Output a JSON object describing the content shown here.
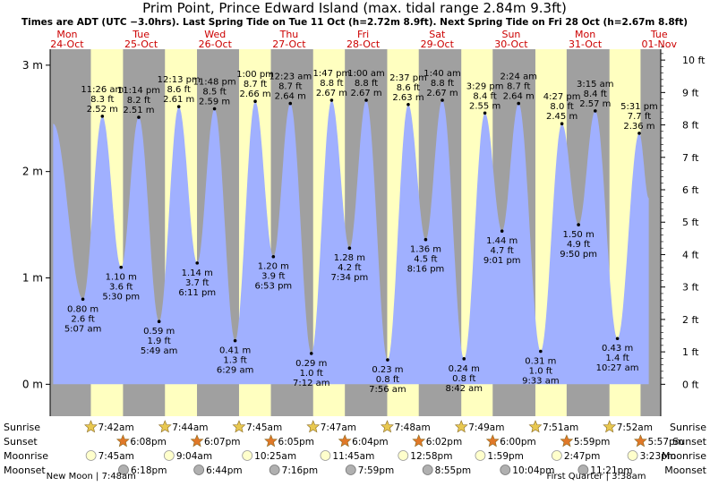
{
  "title": "Prim Point, Prince Edward Island (max. tidal range 2.84m 9.3ft)",
  "subtitle": "Times are ADT (UTC −3.0hrs). Last Spring Tide on Tue 11 Oct (h=2.72m 8.9ft). Next Spring Tide on Fri 28 Oct (h=2.67m 8.8ft)",
  "colors": {
    "night": "#a0a0a0",
    "day": "#ffffc0",
    "water": "#a0b0ff",
    "header_red": "#cc0000",
    "sun_star": "#e8c850",
    "sunset_star": "#e07828",
    "moonrise": "#ffffcc",
    "moonset": "#b0b0b0"
  },
  "days": [
    {
      "weekday": "Mon",
      "date": "24-Oct"
    },
    {
      "weekday": "Tue",
      "date": "25-Oct"
    },
    {
      "weekday": "Wed",
      "date": "26-Oct"
    },
    {
      "weekday": "Thu",
      "date": "27-Oct"
    },
    {
      "weekday": "Fri",
      "date": "28-Oct"
    },
    {
      "weekday": "Sat",
      "date": "29-Oct"
    },
    {
      "weekday": "Sun",
      "date": "30-Oct"
    },
    {
      "weekday": "Mon",
      "date": "31-Oct"
    },
    {
      "weekday": "Tue",
      "date": "01-Nov"
    }
  ],
  "chart_data": {
    "type": "area",
    "title": "Prim Point, Prince Edward Island (max. tidal range 2.84m 9.3ft)",
    "x_unit": "hours since 24-Oct 00:00",
    "xlim": [
      18.5,
      216.5
    ],
    "left_axis": {
      "unit": "m",
      "lim": [
        -0.3,
        3.15
      ],
      "ticks": [
        0,
        1,
        2,
        3
      ],
      "tick_labels": [
        "0 m",
        "1 m",
        "2 m",
        "3 m"
      ]
    },
    "right_axis": {
      "unit": "ft",
      "ticks": [
        0,
        1,
        2,
        3,
        4,
        5,
        6,
        7,
        8,
        9,
        10
      ],
      "tick_labels": [
        "0 ft",
        "1 ft",
        "2 ft",
        "3 ft",
        "4 ft",
        "5 ft",
        "6 ft",
        "7 ft",
        "8 ft",
        "9 ft",
        "10 ft"
      ]
    },
    "tides": [
      {
        "t": 29.12,
        "h": 0.8,
        "ft": "2.6 ft",
        "time": "5:07 am",
        "type": "low"
      },
      {
        "t": 35.43,
        "h": 2.52,
        "ft": "8.3 ft",
        "time": "11:26 am",
        "type": "high"
      },
      {
        "t": 41.5,
        "h": 1.1,
        "ft": "3.6 ft",
        "time": "5:30 pm",
        "type": "low"
      },
      {
        "t": 47.23,
        "h": 2.51,
        "ft": "8.2 ft",
        "time": "11:14 pm",
        "type": "high"
      },
      {
        "t": 53.82,
        "h": 0.59,
        "ft": "1.9 ft",
        "time": "5:49 am",
        "type": "low"
      },
      {
        "t": 60.22,
        "h": 2.61,
        "ft": "8.6 ft",
        "time": "12:13 pm",
        "type": "high"
      },
      {
        "t": 66.18,
        "h": 1.14,
        "ft": "3.7 ft",
        "time": "6:11 pm",
        "type": "low"
      },
      {
        "t": 71.8,
        "h": 2.59,
        "ft": "8.5 ft",
        "time": "11:48 pm",
        "type": "high"
      },
      {
        "t": 78.48,
        "h": 0.41,
        "ft": "1.3 ft",
        "time": "6:29 am",
        "type": "low"
      },
      {
        "t": 85.0,
        "h": 2.66,
        "ft": "8.7 ft",
        "time": "1:00 pm",
        "type": "high"
      },
      {
        "t": 90.88,
        "h": 1.2,
        "ft": "3.9 ft",
        "time": "6:53 pm",
        "type": "low"
      },
      {
        "t": 96.38,
        "h": 2.64,
        "ft": "8.7 ft",
        "time": "12:23 am",
        "type": "high"
      },
      {
        "t": 103.2,
        "h": 0.29,
        "ft": "1.0 ft",
        "time": "7:12 am",
        "type": "low"
      },
      {
        "t": 109.78,
        "h": 2.67,
        "ft": "8.8 ft",
        "time": "1:47 pm",
        "type": "high"
      },
      {
        "t": 115.57,
        "h": 1.28,
        "ft": "4.2 ft",
        "time": "7:34 pm",
        "type": "low"
      },
      {
        "t": 121.0,
        "h": 2.67,
        "ft": "8.8 ft",
        "time": "1:00 am",
        "type": "high"
      },
      {
        "t": 127.93,
        "h": 0.23,
        "ft": "0.8 ft",
        "time": "7:56 am",
        "type": "low"
      },
      {
        "t": 134.62,
        "h": 2.63,
        "ft": "8.6 ft",
        "time": "2:37 pm",
        "type": "high"
      },
      {
        "t": 140.27,
        "h": 1.36,
        "ft": "4.5 ft",
        "time": "8:16 pm",
        "type": "low"
      },
      {
        "t": 145.67,
        "h": 2.67,
        "ft": "8.8 ft",
        "time": "1:40 am",
        "type": "high"
      },
      {
        "t": 152.7,
        "h": 0.24,
        "ft": "0.8 ft",
        "time": "8:42 am",
        "type": "low"
      },
      {
        "t": 159.48,
        "h": 2.55,
        "ft": "8.4 ft",
        "time": "3:29 pm",
        "type": "high"
      },
      {
        "t": 165.02,
        "h": 1.44,
        "ft": "4.7 ft",
        "time": "9:01 pm",
        "type": "low"
      },
      {
        "t": 170.4,
        "h": 2.64,
        "ft": "8.7 ft",
        "time": "2:24 am",
        "type": "high"
      },
      {
        "t": 177.55,
        "h": 0.31,
        "ft": "1.0 ft",
        "time": "9:33 am",
        "type": "low"
      },
      {
        "t": 184.45,
        "h": 2.45,
        "ft": "8.0 ft",
        "time": "4:27 pm",
        "type": "high"
      },
      {
        "t": 189.83,
        "h": 1.5,
        "ft": "4.9 ft",
        "time": "9:50 pm",
        "type": "low"
      },
      {
        "t": 195.25,
        "h": 2.57,
        "ft": "8.4 ft",
        "time": "3:15 am",
        "type": "high"
      },
      {
        "t": 202.45,
        "h": 0.43,
        "ft": "1.4 ft",
        "time": "10:27 am",
        "type": "low"
      },
      {
        "t": 209.52,
        "h": 2.36,
        "ft": "7.7 ft",
        "time": "5:31 pm",
        "type": "high"
      }
    ],
    "curve_start": {
      "t": 19.5,
      "h": 2.45
    },
    "curve_end": {
      "t": 212.6,
      "h": 1.75
    },
    "daylight": [
      {
        "sunrise": 31.7,
        "sunset": 42.13
      },
      {
        "sunrise": 55.73,
        "sunset": 66.12
      },
      {
        "sunrise": 79.75,
        "sunset": 90.08
      },
      {
        "sunrise": 103.78,
        "sunset": 114.07
      },
      {
        "sunrise": 127.8,
        "sunset": 138.03
      },
      {
        "sunrise": 151.82,
        "sunset": 162.0
      },
      {
        "sunrise": 175.85,
        "sunset": 185.98
      },
      {
        "sunrise": 199.87,
        "sunset": 209.95
      }
    ]
  },
  "bottom": {
    "row_labels": [
      "Sunrise",
      "Sunset",
      "Moonrise",
      "Moonset"
    ],
    "sunrise": [
      {
        "t": 31.7,
        "label": "7:42am"
      },
      {
        "t": 55.73,
        "label": "7:44am"
      },
      {
        "t": 79.75,
        "label": "7:45am"
      },
      {
        "t": 103.78,
        "label": "7:47am"
      },
      {
        "t": 127.8,
        "label": "7:48am"
      },
      {
        "t": 151.82,
        "label": "7:49am"
      },
      {
        "t": 175.85,
        "label": "7:51am"
      },
      {
        "t": 199.87,
        "label": "7:52am"
      }
    ],
    "sunset": [
      {
        "t": 42.13,
        "label": "6:08pm"
      },
      {
        "t": 66.12,
        "label": "6:07pm"
      },
      {
        "t": 90.08,
        "label": "6:05pm"
      },
      {
        "t": 114.07,
        "label": "6:04pm"
      },
      {
        "t": 138.03,
        "label": "6:02pm"
      },
      {
        "t": 162.0,
        "label": "6:00pm"
      },
      {
        "t": 185.98,
        "label": "5:59pm"
      },
      {
        "t": 209.95,
        "label": "5:57pm"
      }
    ],
    "moonrise": [
      {
        "t": 31.75,
        "label": "7:45am"
      },
      {
        "t": 57.07,
        "label": "9:04am"
      },
      {
        "t": 82.42,
        "label": "10:25am"
      },
      {
        "t": 107.75,
        "label": "11:45am"
      },
      {
        "t": 132.97,
        "label": "12:58pm"
      },
      {
        "t": 157.98,
        "label": "1:59pm"
      },
      {
        "t": 182.78,
        "label": "2:47pm"
      },
      {
        "t": 207.38,
        "label": "3:23pm"
      }
    ],
    "moonset": [
      {
        "t": 42.3,
        "label": "6:18pm"
      },
      {
        "t": 66.73,
        "label": "6:44pm"
      },
      {
        "t": 91.27,
        "label": "7:16pm"
      },
      {
        "t": 115.98,
        "label": "7:59pm"
      },
      {
        "t": 140.92,
        "label": "8:55pm"
      },
      {
        "t": 166.07,
        "label": "10:04pm"
      },
      {
        "t": 191.35,
        "label": "11:21pm"
      }
    ],
    "moon_phases": [
      {
        "text": "New Moon | 7:48am",
        "x_t": 31.8
      },
      {
        "text": "First Quarter | 3:38am",
        "x_t": 195.6
      }
    ]
  }
}
